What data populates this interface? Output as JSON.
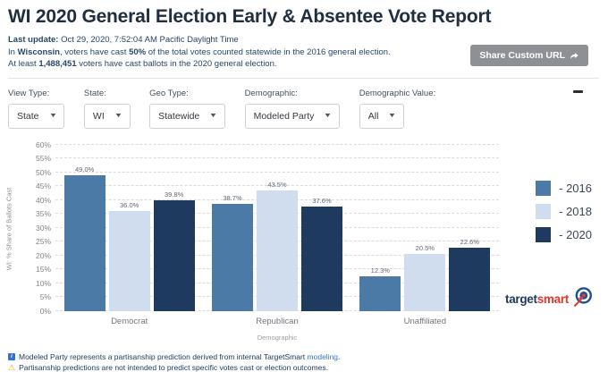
{
  "header": {
    "title": "WI 2020 General Election Early & Absentee Vote Report",
    "last_update_label": "Last update:",
    "last_update_value": " Oct 29, 2020, 7:52:04 AM Pacific Daylight Time",
    "line2": {
      "p1": "In ",
      "b1": "Wisconsin",
      "p2": ", voters have cast ",
      "b2": "50%",
      "p3": " of the total votes counted statewide in the 2016 general election."
    },
    "line3": {
      "p1": "At least ",
      "b1": "1,488,451",
      "p2": " voters have cast ballots in the 2020 general election."
    },
    "share_button": "Share Custom URL"
  },
  "filters": {
    "items": [
      {
        "label": "View Type:",
        "value": "State"
      },
      {
        "label": "State:",
        "value": "WI"
      },
      {
        "label": "Geo Type:",
        "value": "Statewide"
      },
      {
        "label": "Demographic:",
        "value": "Modeled Party"
      },
      {
        "label": "Demographic Value:",
        "value": "All"
      }
    ]
  },
  "chart_data": {
    "type": "bar",
    "categories": [
      "Democrat",
      "Republican",
      "Unaffiliated"
    ],
    "series": [
      {
        "name": "2016",
        "legend_label": "- 2016",
        "color": "#4a7aa5",
        "values": [
          49.0,
          38.7,
          12.3
        ]
      },
      {
        "name": "2018",
        "legend_label": "- 2018",
        "color": "#cfddee",
        "values": [
          36.0,
          43.5,
          20.5
        ]
      },
      {
        "name": "2020",
        "legend_label": "- 2020",
        "color": "#1f3a5f",
        "values": [
          39.8,
          37.6,
          22.6
        ]
      }
    ],
    "ylabel": "WI: % Share of Ballots Cast",
    "xlabel": "Demographic",
    "ylim": [
      0,
      60
    ],
    "y_ticks": [
      "0%",
      "5%",
      "10%",
      "15%",
      "20%",
      "25%",
      "30%",
      "35%",
      "40%",
      "45%",
      "50%",
      "55%",
      "60%"
    ],
    "grid": "horizontal-dashed",
    "legend_position": "right"
  },
  "branding": {
    "part1": "target",
    "part2": "smart"
  },
  "footer": {
    "note1_pre": "Modeled Party represents a partisanship prediction derived from internal TargetSmart ",
    "note1_link": "modeling",
    "note1_post": ".",
    "note2": "Partisanship predictions are not intended to predict specific votes cast or election outcomes.",
    "warning_glyph": "⚠"
  }
}
